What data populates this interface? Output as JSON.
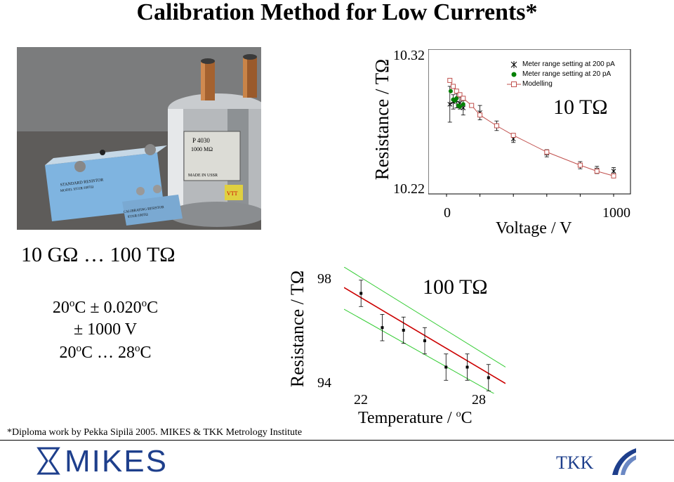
{
  "slide": {
    "title": "Calibration Method for Low Currents*",
    "range": "10 GΩ … 100 TΩ",
    "spec_temp_a": "20",
    "spec_temp_b": "C ± 0.020",
    "spec_temp_c": "C",
    "spec_voltage": "± 1000 V",
    "spec_range_a": "20",
    "spec_range_b": "C … 28",
    "spec_range_c": "C",
    "degree_mark": "o",
    "footnote": "*Diploma work by Pekka Sipilä 2005. MIKES & TKK Metrology Institute",
    "logo_left": "MIKES",
    "logo_right": "TKK",
    "photo_labels": {
      "plate_model": "P 4030",
      "plate_value": "1000 MΩ",
      "plate_made": "MADE IN USSR",
      "box1": "STANDARD RESISTOR",
      "box1_model": "MODEL 9331R/100TΩ",
      "box2": "CALIBRATING RESISTOR",
      "box2_model": "9331R/100TΩ",
      "vtt": "VTT"
    }
  },
  "chart_data": [
    {
      "type": "scatter",
      "title": "10 TΩ",
      "xlabel": "Voltage / V",
      "ylabel": "Resistance / TΩ",
      "xlim": [
        0,
        1000
      ],
      "ylim": [
        10.22,
        10.32
      ],
      "x_tick_labels": [
        "0",
        "1000"
      ],
      "y_tick_labels": [
        "10.32",
        "10.22"
      ],
      "legend_position": "top-right",
      "series": [
        {
          "name": "Meter range setting at 200 pA",
          "marker": "asterisk",
          "color": "#000000",
          "x": [
            20,
            40,
            60,
            80,
            100,
            200,
            300,
            400,
            600,
            800,
            900,
            1000
          ],
          "y": [
            10.288,
            10.29,
            10.291,
            10.289,
            10.285,
            10.281,
            10.27,
            10.259,
            10.247,
            10.237,
            10.233,
            10.232
          ],
          "err": [
            0.015,
            0.006,
            0.006,
            0.005,
            0.006,
            0.006,
            0.004,
            0.003,
            0.003,
            0.003,
            0.003,
            0.003
          ]
        },
        {
          "name": "Meter range setting at 20 pA",
          "marker": "filled-circle",
          "color": "#008000",
          "x": [
            25,
            40,
            50,
            60,
            70,
            80,
            100
          ],
          "y": [
            10.299,
            10.292,
            10.291,
            10.293,
            10.287,
            10.286,
            10.288
          ],
          "err": [
            0,
            0,
            0,
            0,
            0,
            0,
            0
          ]
        },
        {
          "name": "Modelling",
          "marker": "open-square",
          "color": "#c0504d",
          "x": [
            20,
            40,
            60,
            80,
            100,
            150,
            200,
            300,
            400,
            600,
            800,
            900,
            1000
          ],
          "y": [
            10.308,
            10.303,
            10.299,
            10.296,
            10.293,
            10.287,
            10.279,
            10.27,
            10.262,
            10.248,
            10.237,
            10.232,
            10.228
          ]
        }
      ]
    },
    {
      "type": "scatter",
      "title": "100 TΩ",
      "xlabel": "Temperature / oC",
      "ylabel": "Resistance / TΩ",
      "xlim": [
        21.2,
        28.8
      ],
      "ylim": [
        93.8,
        98.6
      ],
      "x_tick_labels": [
        "22",
        "28"
      ],
      "y_tick_labels": [
        "98",
        "94"
      ],
      "series": [
        {
          "name": "",
          "marker": "filled-square",
          "color": "#000000",
          "x": [
            22,
            23,
            24,
            25,
            26,
            27,
            28
          ],
          "y": [
            97.6,
            96.3,
            96.2,
            95.8,
            94.8,
            94.8,
            94.4
          ],
          "err": [
            0.5,
            0.5,
            0.5,
            0.5,
            0.5,
            0.5,
            0.5
          ]
        },
        {
          "name": "",
          "type": "line",
          "color": "#cc0000",
          "x": [
            21.2,
            28.8
          ],
          "y": [
            97.82,
            94.18
          ]
        },
        {
          "name": "",
          "type": "line",
          "color": "#33cc33",
          "x": [
            21.2,
            28.8
          ],
          "y": [
            98.6,
            94.8
          ]
        },
        {
          "name": "",
          "type": "line",
          "color": "#33cc33",
          "x": [
            21.2,
            28.8
          ],
          "y": [
            97.0,
            93.55
          ]
        }
      ]
    }
  ]
}
